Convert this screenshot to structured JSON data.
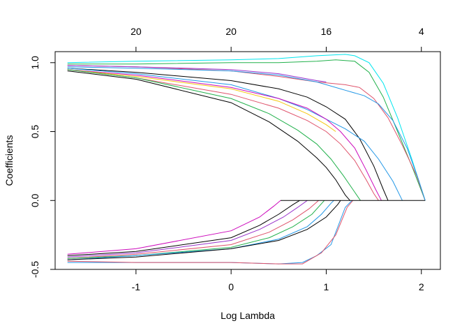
{
  "chart_data": {
    "type": "line",
    "title": "",
    "xlabel": "Log Lambda",
    "ylabel": "Coefficients",
    "xlim": [
      -1.85,
      2.2
    ],
    "ylim": [
      -0.5,
      1.08
    ],
    "x_ticks": [
      -1,
      0,
      1,
      2
    ],
    "y_ticks": [
      -0.5,
      0.0,
      0.5,
      1.0
    ],
    "y_tick_labels": [
      "-0.5",
      "0.0",
      "0.5",
      "1.0"
    ],
    "top_axis": {
      "ticks_at_x": [
        -1,
        0,
        1,
        2
      ],
      "labels": [
        "20",
        "20",
        "16",
        "4"
      ]
    },
    "grid": false,
    "legend": "none",
    "series": [
      {
        "color": "#00E5EE",
        "points": [
          [
            -1.72,
            1.0
          ],
          [
            -1,
            1.01
          ],
          [
            0,
            1.02
          ],
          [
            0.5,
            1.03
          ],
          [
            0.9,
            1.05
          ],
          [
            1.2,
            1.06
          ],
          [
            1.3,
            1.05
          ],
          [
            1.45,
            1.0
          ],
          [
            1.6,
            0.85
          ],
          [
            1.75,
            0.6
          ],
          [
            1.9,
            0.3
          ],
          [
            2.04,
            0.0
          ]
        ]
      },
      {
        "color": "#22B14C",
        "points": [
          [
            -1.72,
            0.99
          ],
          [
            -1,
            0.99
          ],
          [
            0,
            1.0
          ],
          [
            0.5,
            1.0
          ],
          [
            0.9,
            1.01
          ],
          [
            1.1,
            1.02
          ],
          [
            1.3,
            1.01
          ],
          [
            1.45,
            0.93
          ],
          [
            1.6,
            0.75
          ],
          [
            1.75,
            0.5
          ],
          [
            1.9,
            0.25
          ],
          [
            2.04,
            0.0
          ]
        ]
      },
      {
        "color": "#DF536B",
        "points": [
          [
            -1.72,
            0.98
          ],
          [
            -1,
            0.97
          ],
          [
            0,
            0.94
          ],
          [
            0.5,
            0.9
          ],
          [
            0.9,
            0.86
          ],
          [
            1.2,
            0.84
          ],
          [
            1.35,
            0.82
          ],
          [
            1.5,
            0.74
          ],
          [
            1.65,
            0.6
          ],
          [
            1.8,
            0.4
          ],
          [
            1.95,
            0.18
          ],
          [
            2.04,
            0.0
          ]
        ]
      },
      {
        "color": "#2297E6",
        "points": [
          [
            -1.72,
            0.97
          ],
          [
            -1,
            0.96
          ],
          [
            0,
            0.94
          ],
          [
            0.5,
            0.91
          ],
          [
            0.9,
            0.86
          ],
          [
            1.2,
            0.8
          ],
          [
            1.4,
            0.76
          ],
          [
            1.55,
            0.7
          ],
          [
            1.7,
            0.58
          ],
          [
            1.85,
            0.38
          ],
          [
            1.97,
            0.15
          ],
          [
            2.04,
            0.0
          ]
        ]
      },
      {
        "color": "#9933CC",
        "points": [
          [
            -1.72,
            0.98
          ],
          [
            -1,
            0.97
          ],
          [
            0,
            0.95
          ],
          [
            0.5,
            0.92
          ],
          [
            0.9,
            0.87
          ],
          [
            1.0,
            0.86
          ]
        ]
      },
      {
        "color": "#000000",
        "points": [
          [
            -1.72,
            0.96
          ],
          [
            -1,
            0.93
          ],
          [
            0,
            0.87
          ],
          [
            0.5,
            0.81
          ],
          [
            0.8,
            0.75
          ],
          [
            1.0,
            0.68
          ],
          [
            1.2,
            0.59
          ],
          [
            1.35,
            0.45
          ],
          [
            1.5,
            0.25
          ],
          [
            1.6,
            0.08
          ],
          [
            1.65,
            0.0
          ]
        ]
      },
      {
        "color": "#2297E6",
        "points": [
          [
            -1.72,
            0.96
          ],
          [
            -1,
            0.92
          ],
          [
            0,
            0.84
          ],
          [
            0.5,
            0.74
          ],
          [
            0.8,
            0.66
          ],
          [
            1.0,
            0.59
          ],
          [
            1.2,
            0.52
          ],
          [
            1.4,
            0.43
          ],
          [
            1.55,
            0.3
          ],
          [
            1.7,
            0.14
          ],
          [
            1.8,
            0.0
          ]
        ]
      },
      {
        "color": "#CD0BBC",
        "points": [
          [
            -1.72,
            0.95
          ],
          [
            -1,
            0.91
          ],
          [
            0,
            0.82
          ],
          [
            0.5,
            0.74
          ],
          [
            0.8,
            0.67
          ],
          [
            1.0,
            0.59
          ],
          [
            1.15,
            0.5
          ],
          [
            1.3,
            0.38
          ],
          [
            1.42,
            0.22
          ],
          [
            1.52,
            0.08
          ],
          [
            1.58,
            0.0
          ]
        ]
      },
      {
        "color": "#F5C710",
        "points": [
          [
            -1.72,
            0.95
          ],
          [
            -1,
            0.9
          ],
          [
            0,
            0.81
          ],
          [
            0.5,
            0.72
          ],
          [
            0.8,
            0.63
          ],
          [
            1.0,
            0.55
          ],
          [
            1.1,
            0.5
          ]
        ]
      },
      {
        "color": "#DF536B",
        "points": [
          [
            -1.72,
            0.95
          ],
          [
            -1,
            0.89
          ],
          [
            0,
            0.77
          ],
          [
            0.5,
            0.67
          ],
          [
            0.8,
            0.58
          ],
          [
            1.0,
            0.5
          ],
          [
            1.15,
            0.41
          ],
          [
            1.3,
            0.29
          ],
          [
            1.42,
            0.15
          ],
          [
            1.5,
            0.05
          ],
          [
            1.55,
            0.0
          ]
        ]
      },
      {
        "color": "#22B14C",
        "points": [
          [
            -1.72,
            0.95
          ],
          [
            -1,
            0.89
          ],
          [
            0,
            0.74
          ],
          [
            0.4,
            0.63
          ],
          [
            0.7,
            0.51
          ],
          [
            0.9,
            0.41
          ],
          [
            1.05,
            0.3
          ],
          [
            1.18,
            0.18
          ],
          [
            1.3,
            0.06
          ],
          [
            1.36,
            0.0
          ]
        ]
      },
      {
        "color": "#000000",
        "points": [
          [
            -1.72,
            0.94
          ],
          [
            -1,
            0.88
          ],
          [
            0,
            0.71
          ],
          [
            0.4,
            0.57
          ],
          [
            0.7,
            0.43
          ],
          [
            0.9,
            0.31
          ],
          [
            1.0,
            0.24
          ],
          [
            1.1,
            0.15
          ],
          [
            1.2,
            0.04
          ],
          [
            1.25,
            0.0
          ]
        ]
      },
      {
        "color": "#CD0BBC",
        "points": [
          [
            -1.72,
            -0.39
          ],
          [
            -1,
            -0.35
          ],
          [
            0,
            -0.22
          ],
          [
            0.3,
            -0.12
          ],
          [
            0.45,
            -0.04
          ],
          [
            0.52,
            0.0
          ]
        ]
      },
      {
        "color": "#000000",
        "points": [
          [
            -1.72,
            -0.4
          ],
          [
            -1,
            -0.37
          ],
          [
            0,
            -0.27
          ],
          [
            0.3,
            -0.18
          ],
          [
            0.5,
            -0.1
          ],
          [
            0.65,
            -0.03
          ],
          [
            0.72,
            0.0
          ]
        ]
      },
      {
        "color": "#9933CC",
        "points": [
          [
            -1.72,
            -0.41
          ],
          [
            -1,
            -0.38
          ],
          [
            0,
            -0.29
          ],
          [
            0.3,
            -0.21
          ],
          [
            0.55,
            -0.12
          ],
          [
            0.7,
            -0.05
          ],
          [
            0.8,
            0.0
          ]
        ]
      },
      {
        "color": "#DF536B",
        "points": [
          [
            -1.72,
            -0.42
          ],
          [
            -1,
            -0.39
          ],
          [
            0,
            -0.32
          ],
          [
            0.4,
            -0.23
          ],
          [
            0.65,
            -0.14
          ],
          [
            0.82,
            -0.06
          ],
          [
            0.92,
            0.0
          ]
        ]
      },
      {
        "color": "#22B14C",
        "points": [
          [
            -1.72,
            -0.42
          ],
          [
            -1,
            -0.4
          ],
          [
            0,
            -0.34
          ],
          [
            0.4,
            -0.27
          ],
          [
            0.65,
            -0.19
          ],
          [
            0.85,
            -0.1
          ],
          [
            0.98,
            0.0
          ]
        ]
      },
      {
        "color": "#2297E6",
        "points": [
          [
            -1.72,
            -0.43
          ],
          [
            -1,
            -0.4
          ],
          [
            0,
            -0.35
          ],
          [
            0.5,
            -0.28
          ],
          [
            0.8,
            -0.19
          ],
          [
            0.95,
            -0.1
          ],
          [
            1.05,
            -0.02
          ],
          [
            1.08,
            0.0
          ]
        ]
      },
      {
        "color": "#000000",
        "points": [
          [
            -1.72,
            -0.43
          ],
          [
            -1,
            -0.41
          ],
          [
            0,
            -0.35
          ],
          [
            0.5,
            -0.29
          ],
          [
            0.8,
            -0.21
          ],
          [
            1.0,
            -0.12
          ],
          [
            1.12,
            -0.03
          ],
          [
            1.15,
            0.0
          ]
        ]
      },
      {
        "color": "#2297E6",
        "points": [
          [
            -1.72,
            -0.45
          ],
          [
            -1,
            -0.45
          ],
          [
            0,
            -0.45
          ],
          [
            0.5,
            -0.46
          ],
          [
            0.75,
            -0.45
          ],
          [
            0.9,
            -0.4
          ],
          [
            1.05,
            -0.32
          ],
          [
            1.2,
            -0.05
          ],
          [
            1.27,
            0.0
          ]
        ]
      },
      {
        "color": "#DF536B",
        "points": [
          [
            -1.72,
            -0.44
          ],
          [
            -1,
            -0.45
          ],
          [
            0,
            -0.45
          ],
          [
            0.5,
            -0.46
          ],
          [
            0.75,
            -0.46
          ],
          [
            0.95,
            -0.38
          ],
          [
            1.1,
            -0.25
          ],
          [
            1.22,
            -0.05
          ],
          [
            1.28,
            0.0
          ]
        ]
      },
      {
        "color": "#000000",
        "points": [
          [
            0.52,
            0.0
          ],
          [
            2.04,
            0.0
          ]
        ]
      }
    ]
  }
}
